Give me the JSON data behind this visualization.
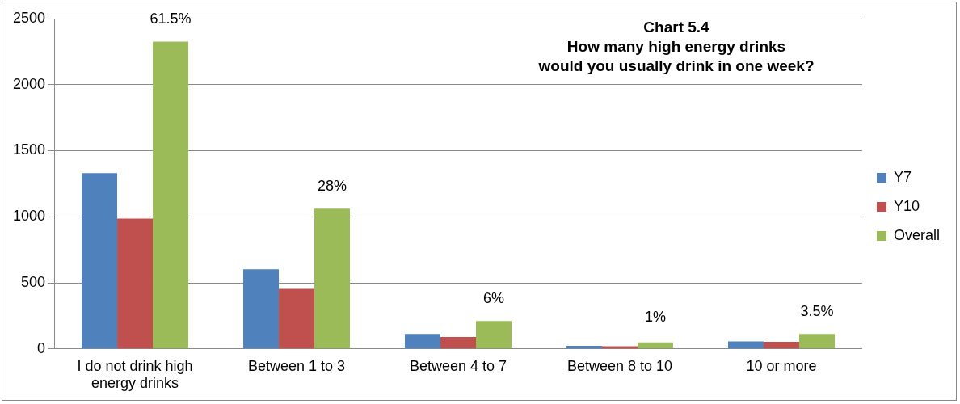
{
  "chart_data": {
    "type": "bar",
    "title": "Chart 5.4\nHow many high energy drinks\nwould you usually drink in one week?",
    "categories": [
      "I do not drink high energy drinks",
      "Between 1 to 3",
      "Between 4 to 7",
      "Between 8 to 10",
      "10 or more"
    ],
    "series": [
      {
        "name": "Y7",
        "color": "#4f81bd",
        "values": [
          1330,
          602,
          114,
          23,
          57
        ]
      },
      {
        "name": "Y10",
        "color": "#c0504d",
        "values": [
          987,
          454,
          91,
          20,
          54
        ]
      },
      {
        "name": "Overall",
        "color": "#9bbb59",
        "values": [
          2326,
          1062,
          211,
          49,
          114
        ]
      }
    ],
    "annotations": [
      "61.5%",
      "28%",
      "6%",
      "1%",
      "3.5%"
    ],
    "ylim": [
      0,
      2500
    ],
    "yticks": [
      0,
      500,
      1000,
      1500,
      2000,
      2500
    ],
    "grid": "y",
    "legend": "right"
  }
}
